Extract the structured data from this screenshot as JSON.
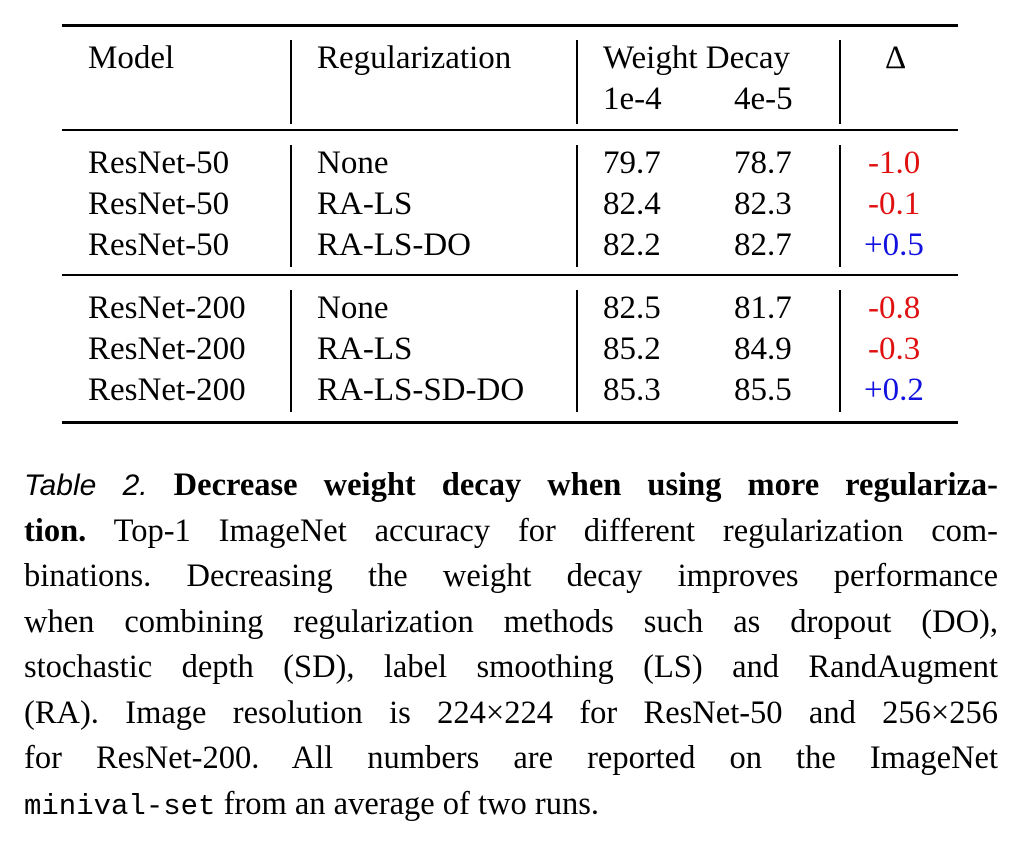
{
  "table": {
    "headers": {
      "model": "Model",
      "regularization": "Regularization",
      "weight_decay": "Weight Decay",
      "wd_1e4": "1e-4",
      "wd_4e5": "4e-5",
      "delta": "Δ"
    },
    "rows": [
      {
        "model": "ResNet-50",
        "reg": "None",
        "wd1": "79.7",
        "wd2": "78.7",
        "delta": "-1.0"
      },
      {
        "model": "ResNet-50",
        "reg": "RA-LS",
        "wd1": "82.4",
        "wd2": "82.3",
        "delta": "-0.1"
      },
      {
        "model": "ResNet-50",
        "reg": "RA-LS-DO",
        "wd1": "82.2",
        "wd2": "82.7",
        "delta": "+0.5"
      },
      {
        "model": "ResNet-200",
        "reg": "None",
        "wd1": "82.5",
        "wd2": "81.7",
        "delta": "-0.8"
      },
      {
        "model": "ResNet-200",
        "reg": "RA-LS",
        "wd1": "85.2",
        "wd2": "84.9",
        "delta": "-0.3"
      },
      {
        "model": "ResNet-200",
        "reg": "RA-LS-SD-DO",
        "wd1": "85.3",
        "wd2": "85.5",
        "delta": "+0.2"
      }
    ],
    "colors": {
      "negative": "#e01010",
      "positive": "#1212e0"
    }
  },
  "caption": {
    "label": "Table 2.",
    "bold_part1": "Decrease weight decay when using more regulariza-",
    "bold_part2": "tion.",
    "line2_rest": "Top-1 ImageNet accuracy for different regularization com-",
    "line3": "binations. Decreasing the weight decay improves performance",
    "line4": "when combining regularization methods such as dropout (DO),",
    "line5": "stochastic depth (SD), label smoothing (LS) and RandAugment",
    "line6": "(RA). Image resolution is 224×224 for ResNet-50 and 256×256",
    "line7": "for ResNet-200. All numbers are reported on the ImageNet",
    "mono_term": "minival-set",
    "line8_rest": "from an average of two runs."
  }
}
